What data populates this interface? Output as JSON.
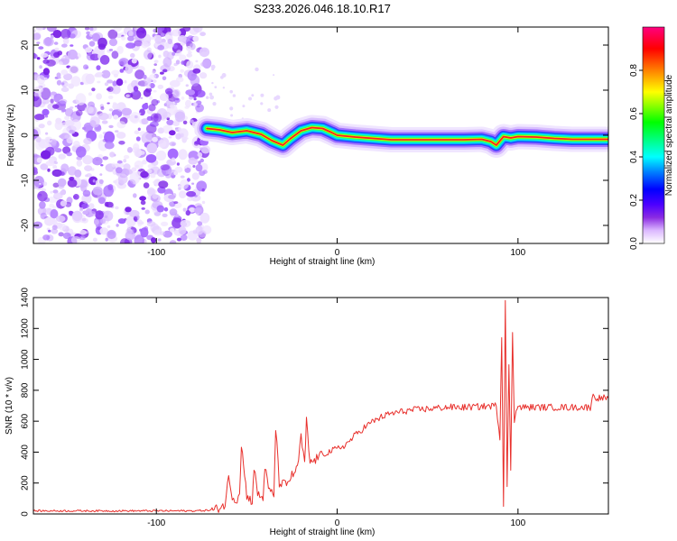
{
  "chart_data": [
    {
      "type": "heatmap",
      "title": "S233.2026.046.18.10.R17",
      "xlabel": "Height of straight line (km)",
      "ylabel": "Frequency (Hz)",
      "xlim": [
        -168,
        150
      ],
      "ylim": [
        -24,
        24
      ],
      "xticks": [
        -100,
        0,
        100
      ],
      "yticks": [
        -20,
        -10,
        0,
        10,
        20
      ],
      "noise_region": [
        -168,
        -72
      ],
      "band_center": {
        "x": [
          -72,
          -65,
          -58,
          -50,
          -42,
          -36,
          -30,
          -26,
          -20,
          -14,
          -8,
          -3,
          0,
          10,
          20,
          30,
          50,
          70,
          80,
          85,
          88,
          92,
          96,
          100,
          110,
          120,
          130,
          140,
          150
        ],
        "y": [
          1.5,
          1.2,
          0.6,
          1.0,
          0.2,
          -1.2,
          -2.2,
          -0.8,
          1.0,
          1.7,
          1.5,
          0.6,
          0.0,
          -0.4,
          -0.7,
          -1.0,
          -1.0,
          -1.0,
          -0.9,
          -1.4,
          -2.2,
          -0.3,
          -0.6,
          -0.3,
          -0.4,
          -0.7,
          -0.9,
          -0.9,
          -0.9
        ]
      },
      "colorbar": {
        "label": "Normalized spectral amplitude",
        "ticks": [
          "0.0",
          "0.2",
          "0.4",
          "0.6",
          "0.8"
        ],
        "min": 0,
        "max": 1,
        "colors": [
          "#ffffff",
          "#dcb8ff",
          "#8a2be2",
          "#4b00ff",
          "#0000ff",
          "#0080ff",
          "#00ffff",
          "#00ff80",
          "#00ff00",
          "#80ff00",
          "#ffff00",
          "#ff8000",
          "#ff0000",
          "#ff0080"
        ]
      }
    },
    {
      "type": "line",
      "xlabel": "Height of straight line (km)",
      "ylabel": "SNR (10 * v/v)",
      "xlim": [
        -168,
        150
      ],
      "ylim": [
        0,
        1400
      ],
      "xticks": [
        -100,
        0,
        100
      ],
      "yticks": [
        0,
        200,
        400,
        600,
        800,
        1000,
        1200,
        1400
      ],
      "line_color": "#e8302c",
      "series": [
        {
          "name": "SNR",
          "x": [
            -168,
            -130,
            -100,
            -80,
            -68,
            -62,
            -60,
            -58,
            -56,
            -54,
            -53,
            -50,
            -47,
            -46,
            -44,
            -41,
            -40,
            -38,
            -35,
            -34,
            -32,
            -28,
            -25,
            -22,
            -20,
            -18,
            -17,
            -15,
            -12,
            -10,
            -5,
            0,
            5,
            10,
            15,
            20,
            25,
            30,
            40,
            50,
            60,
            70,
            80,
            88,
            90,
            91,
            92,
            93,
            94,
            95,
            96,
            97,
            98,
            99,
            100,
            110,
            120,
            130,
            140,
            141,
            145,
            150
          ],
          "y": [
            20,
            20,
            20,
            20,
            25,
            60,
            240,
            120,
            80,
            140,
            450,
            120,
            80,
            300,
            130,
            100,
            310,
            160,
            120,
            560,
            200,
            190,
            250,
            290,
            500,
            320,
            600,
            330,
            350,
            380,
            400,
            420,
            450,
            510,
            560,
            600,
            630,
            650,
            670,
            680,
            690,
            690,
            695,
            700,
            500,
            1150,
            60,
            1400,
            180,
            950,
            300,
            1170,
            600,
            690,
            690,
            690,
            690,
            690,
            690,
            760,
            750,
            750
          ]
        }
      ]
    }
  ]
}
